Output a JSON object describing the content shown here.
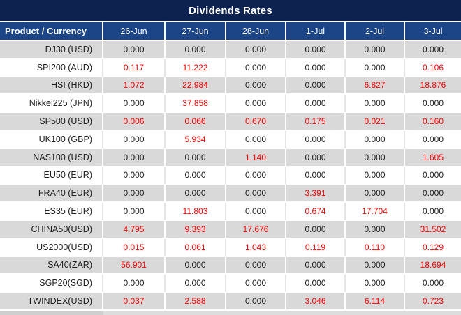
{
  "title": "Dividends Rates",
  "table": {
    "product_header": "Product / Currency",
    "date_headers": [
      "26-Jun",
      "27-Jun",
      "28-Jun",
      "1-Jul",
      "2-Jul",
      "3-Jul"
    ],
    "rows": [
      {
        "product": "DJ30 (USD)",
        "values": [
          "0.000",
          "0.000",
          "0.000",
          "0.000",
          "0.000",
          "0.000"
        ]
      },
      {
        "product": "SPI200 (AUD)",
        "values": [
          "0.117",
          "11.222",
          "0.000",
          "0.000",
          "0.000",
          "0.106"
        ]
      },
      {
        "product": "HSI (HKD)",
        "values": [
          "1.072",
          "22.984",
          "0.000",
          "0.000",
          "6.827",
          "18.876"
        ]
      },
      {
        "product": "Nikkei225 (JPN)",
        "values": [
          "0.000",
          "37.858",
          "0.000",
          "0.000",
          "0.000",
          "0.000"
        ]
      },
      {
        "product": "SP500 (USD)",
        "values": [
          "0.006",
          "0.066",
          "0.670",
          "0.175",
          "0.021",
          "0.160"
        ]
      },
      {
        "product": "UK100 (GBP)",
        "values": [
          "0.000",
          "5.934",
          "0.000",
          "0.000",
          "0.000",
          "0.000"
        ]
      },
      {
        "product": "NAS100 (USD)",
        "values": [
          "0.000",
          "0.000",
          "1.140",
          "0.000",
          "0.000",
          "1.605"
        ]
      },
      {
        "product": "EU50 (EUR)",
        "values": [
          "0.000",
          "0.000",
          "0.000",
          "0.000",
          "0.000",
          "0.000"
        ]
      },
      {
        "product": "FRA40 (EUR)",
        "values": [
          "0.000",
          "0.000",
          "0.000",
          "3.391",
          "0.000",
          "0.000"
        ]
      },
      {
        "product": "ES35 (EUR)",
        "values": [
          "0.000",
          "11.803",
          "0.000",
          "0.674",
          "17.704",
          "0.000"
        ]
      },
      {
        "product": "CHINA50(USD)",
        "values": [
          "4.795",
          "9.393",
          "17.676",
          "0.000",
          "0.000",
          "31.502"
        ]
      },
      {
        "product": "US2000(USD)",
        "values": [
          "0.015",
          "0.061",
          "1.043",
          "0.119",
          "0.110",
          "0.129"
        ]
      },
      {
        "product": "SA40(ZAR)",
        "values": [
          "56.901",
          "0.000",
          "0.000",
          "0.000",
          "0.000",
          "18.694"
        ]
      },
      {
        "product": "SGP20(SGD)",
        "values": [
          "0.000",
          "0.000",
          "0.000",
          "0.000",
          "0.000",
          "0.000"
        ]
      },
      {
        "product": "TWINDEX(USD)",
        "values": [
          "0.037",
          "2.588",
          "0.000",
          "3.046",
          "6.114",
          "0.723"
        ]
      }
    ]
  },
  "colors": {
    "title_bar_bg": "#0E2250",
    "header_bg": "#1C4587",
    "row_alt_bg": "#D9D9D9",
    "row_bg": "#FFFFFF",
    "value_nonzero": "#FF0000",
    "value_zero": "#212121",
    "separator": "#FFFFFF"
  }
}
